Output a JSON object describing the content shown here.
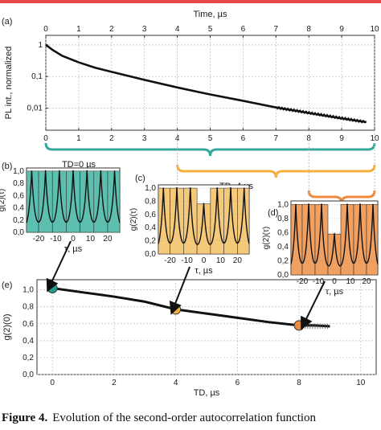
{
  "colors": {
    "accent_red": "#e8454b",
    "teal": "#5cbfb0",
    "orange_light": "#f5c97a",
    "orange": "#f0a060",
    "bracket_teal": "#35a89a",
    "bracket_orange_light": "#f5b040",
    "bracket_orange": "#f08a3c"
  },
  "chart_data": [
    {
      "panel": "(a)",
      "type": "line",
      "xlabel": "Time, µs",
      "ylabel": "PL int., normalized",
      "xlim": [
        0,
        10
      ],
      "ylim_log": [
        0.002,
        2
      ],
      "y_log_scale": true,
      "x_ticks": [
        "0",
        "1",
        "2",
        "3",
        "4",
        "5",
        "6",
        "7",
        "8",
        "9",
        "10"
      ],
      "x_ticks_top": [
        "0",
        "1",
        "2",
        "3",
        "4",
        "5",
        "6",
        "7",
        "8",
        "9",
        "10"
      ],
      "y_ticks": [
        "1",
        "0,1",
        "0,01"
      ],
      "grid": true,
      "x": [
        0,
        0.2,
        0.5,
        1,
        1.5,
        2,
        3,
        4,
        5,
        6,
        7,
        8,
        9,
        9.75
      ],
      "y": [
        1.0,
        0.7,
        0.45,
        0.28,
        0.19,
        0.14,
        0.078,
        0.045,
        0.027,
        0.017,
        0.0105,
        0.007,
        0.0047,
        0.0036
      ]
    },
    {
      "panel": "(b)",
      "type": "line",
      "xlabel": "τ, µs",
      "ylabel": "g(2)(τ)",
      "xlim": [
        -27,
        27
      ],
      "ylim": [
        0,
        1.05
      ],
      "x_ticks": [
        "-20",
        "-10",
        "0",
        "10",
        "20"
      ],
      "y_ticks": [
        "0,0",
        "0,2",
        "0,4",
        "0,6",
        "0,8",
        "1,0"
      ],
      "bar_heights": [
        1.0,
        1.0,
        1.0,
        1.0,
        1.0,
        1.0,
        1.0
      ],
      "peak_centers": [
        -24,
        -16,
        -8,
        0,
        8,
        16,
        24
      ]
    },
    {
      "panel": "(c)",
      "type": "line",
      "xlabel": "τ, µs",
      "ylabel": "g(2)(τ)",
      "xlim": [
        -27,
        27
      ],
      "ylim": [
        0,
        1.05
      ],
      "x_ticks": [
        "-20",
        "-10",
        "0",
        "10",
        "20"
      ],
      "y_ticks": [
        "0,0",
        "0,2",
        "0,4",
        "0,6",
        "0,8",
        "1,0"
      ],
      "bar_heights": [
        1.0,
        1.0,
        1.0,
        0.76,
        1.0,
        1.0,
        1.0
      ],
      "peak_centers": [
        -24,
        -16,
        -8,
        0,
        8,
        16,
        24
      ]
    },
    {
      "panel": "(d)",
      "type": "line",
      "xlabel": "τ, µs",
      "ylabel": "g(2)(τ)",
      "xlim": [
        -27,
        27
      ],
      "ylim": [
        0,
        1.05
      ],
      "x_ticks": [
        "-20",
        "-10",
        "0",
        "10",
        "20"
      ],
      "y_ticks": [
        "0,0",
        "0,2",
        "0,4",
        "0,6",
        "0,8",
        "1,0"
      ],
      "bar_heights": [
        1.0,
        1.0,
        1.0,
        0.58,
        1.0,
        1.0,
        1.0
      ],
      "peak_centers": [
        -24,
        -16,
        -8,
        0,
        8,
        16,
        24
      ]
    },
    {
      "panel": "(e)",
      "type": "line",
      "xlabel": "TD, µs",
      "ylabel": "g(2)(0)",
      "xlim": [
        -0.5,
        10.5
      ],
      "ylim": [
        0,
        1.12
      ],
      "x_ticks": [
        "0",
        "2",
        "4",
        "6",
        "8",
        "10"
      ],
      "y_ticks": [
        "0,0",
        "0,2",
        "0,4",
        "0,6",
        "0,8",
        "1,0"
      ],
      "grid": true,
      "x": [
        0,
        1,
        2,
        3,
        4,
        5,
        6,
        7,
        8,
        8.5,
        9
      ],
      "y": [
        1.02,
        0.97,
        0.92,
        0.86,
        0.77,
        0.72,
        0.67,
        0.62,
        0.58,
        0.58,
        0.57
      ],
      "markers": [
        {
          "x": 0,
          "y": 1.02,
          "color": "#1f9e8c"
        },
        {
          "x": 4,
          "y": 0.77,
          "color": "#f5b040"
        },
        {
          "x": 8,
          "y": 0.58,
          "color": "#f08a3c"
        }
      ]
    }
  ],
  "annotations": {
    "bracket_b": "TD=0 µs",
    "bracket_c": "TD=4 µs",
    "bracket_d": "TD=8 µs"
  },
  "caption": {
    "label": "Figure 4.",
    "text": "Evolution of the second-order autocorrelation function"
  }
}
